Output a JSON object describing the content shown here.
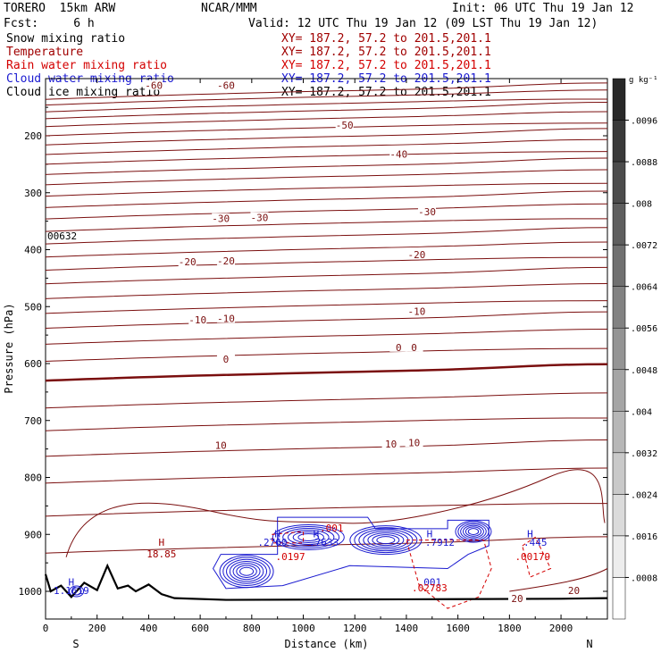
{
  "header": {
    "model": "TORERO  15km ARW",
    "center": "NCAR/MMM",
    "init": "Init: 06 UTC Thu 19 Jan 12",
    "fcst": "Fcst:     6 h",
    "valid": "Valid: 12 UTC Thu 19 Jan 12 (09 LST Thu 19 Jan 12)"
  },
  "legend": [
    {
      "name": "Snow mixing ratio",
      "color": "#000000",
      "xy": ""
    },
    {
      "name": "Temperature",
      "color": "#a00000",
      "xy": "XY= 187.2, 57.2 to 201.5,201.1"
    },
    {
      "name": "Rain water mixing ratio",
      "color": "#d40000",
      "xy": "XY= 187.2, 57.2 to 201.5,201.1"
    },
    {
      "name": "Cloud water mixing ratio",
      "color": "#1a1ad0",
      "xy": "XY= 187.2, 57.2 to 201.5,201.1"
    },
    {
      "name": "Cloud ice mixing ratio",
      "color": "#000000",
      "xy": "XY= 187.2, 57.2 to 201.5,201.1"
    }
  ],
  "chart_data": {
    "type": "contour-cross-section",
    "xlabel": "Distance (km)",
    "ylabel": "Pressure (hPa)",
    "xlim": [
      0,
      2180
    ],
    "ylim": [
      1045,
      100
    ],
    "x_ticks": [
      0,
      200,
      400,
      600,
      800,
      1000,
      1200,
      1400,
      1600,
      1800,
      2000
    ],
    "y_ticks": [
      200,
      300,
      400,
      500,
      600,
      700,
      800,
      900,
      1000
    ],
    "x_ends": [
      "S",
      "N"
    ],
    "colorbar": {
      "unit": "g kg⁻¹",
      "labels": [
        ".0096",
        ".0088",
        ".008",
        ".0072",
        ".0064",
        ".0056",
        ".0048",
        ".004",
        ".0032",
        ".0024",
        ".0016",
        ".0008"
      ]
    },
    "annotation_left": "00632",
    "temperature_labels": [
      {
        "text": "-60",
        "x": 420,
        "p": 113
      },
      {
        "text": "-60",
        "x": 700,
        "p": 113
      },
      {
        "text": "-50",
        "x": 1160,
        "p": 183
      },
      {
        "text": "-40",
        "x": 1370,
        "p": 234
      },
      {
        "text": "-30",
        "x": 680,
        "p": 347
      },
      {
        "text": "-30",
        "x": 830,
        "p": 345
      },
      {
        "text": "-30",
        "x": 1480,
        "p": 335
      },
      {
        "text": "-20",
        "x": 550,
        "p": 423
      },
      {
        "text": "-20",
        "x": 700,
        "p": 421
      },
      {
        "text": "-20",
        "x": 1440,
        "p": 410
      },
      {
        "text": "-10",
        "x": 590,
        "p": 525
      },
      {
        "text": "-10",
        "x": 700,
        "p": 522
      },
      {
        "text": "-10",
        "x": 1440,
        "p": 510
      },
      {
        "text": "0",
        "x": 700,
        "p": 594
      },
      {
        "text": "0",
        "x": 1370,
        "p": 573
      },
      {
        "text": "0",
        "x": 1430,
        "p": 573
      },
      {
        "text": "10",
        "x": 680,
        "p": 745
      },
      {
        "text": "10",
        "x": 1340,
        "p": 743
      },
      {
        "text": "10",
        "x": 1430,
        "p": 740
      },
      {
        "text": "20",
        "x": 1830,
        "p": 1014
      },
      {
        "text": "20",
        "x": 2050,
        "p": 1000
      }
    ],
    "maxima": [
      {
        "text": "H",
        "x": 450,
        "p": 920,
        "color": "#a00000"
      },
      {
        "text": "18.85",
        "x": 450,
        "p": 940,
        "color": "#a00000"
      },
      {
        "text": "H",
        "x": 100,
        "p": 990,
        "color": "#1a1ad0"
      },
      {
        "text": "1.1619",
        "x": 100,
        "p": 1005,
        "color": "#1a1ad0"
      },
      {
        "text": "H",
        "x": 900,
        "p": 905,
        "color": "#1a1ad0"
      },
      {
        "text": ".2760",
        "x": 880,
        "p": 920,
        "color": "#1a1ad0"
      },
      {
        "text": ".0197",
        "x": 950,
        "p": 945,
        "color": "#d40000"
      },
      {
        "text": "H",
        "x": 1050,
        "p": 905,
        "color": "#1a1ad0"
      },
      {
        "text": ".7633",
        "x": 1080,
        "p": 920,
        "color": "#1a1ad0"
      },
      {
        "text": ".001",
        "x": 1110,
        "p": 895,
        "color": "#d40000"
      },
      {
        "text": "H",
        "x": 1490,
        "p": 905,
        "color": "#1a1ad0"
      },
      {
        "text": ".7912",
        "x": 1530,
        "p": 920,
        "color": "#1a1ad0"
      },
      {
        "text": ".001",
        "x": 1490,
        "p": 990,
        "color": "#1a1ad0"
      },
      {
        "text": ".02783",
        "x": 1490,
        "p": 1000,
        "color": "#d40000"
      },
      {
        "text": "H",
        "x": 1880,
        "p": 905,
        "color": "#1a1ad0"
      },
      {
        "text": ".445",
        "x": 1900,
        "p": 920,
        "color": "#1a1ad0"
      },
      {
        "text": ".00179",
        "x": 1890,
        "p": 945,
        "color": "#d40000"
      }
    ]
  }
}
